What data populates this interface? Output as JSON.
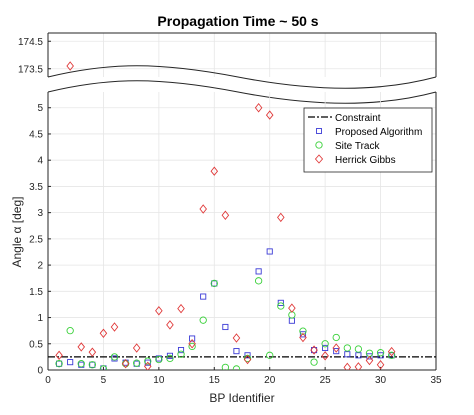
{
  "chart_data": {
    "type": "scatter",
    "title": "Propagation Time ~ 50 s",
    "xlabel": "BP Identifier",
    "ylabel": "Angle α [deg]",
    "xlim": [
      0,
      35
    ],
    "ylim_main": [
      0,
      5.3
    ],
    "ylim_top": [
      173.2,
      174.8
    ],
    "xticks": [
      "0",
      "5",
      "10",
      "15",
      "20",
      "25",
      "30",
      "35"
    ],
    "yticks_main": [
      "0",
      "0.5",
      "1",
      "1.5",
      "2",
      "2.5",
      "3",
      "3.5",
      "4",
      "4.5",
      "5"
    ],
    "yticks_top": [
      "173.5",
      "174.5"
    ],
    "grid": true,
    "legend_position": "top-right",
    "constraint": {
      "name": "Constraint",
      "value": 0.25,
      "color": "#000000"
    },
    "series": [
      {
        "name": "Proposed Algorithm",
        "marker": "square",
        "color": "#3b3bd6",
        "x": [
          1,
          2,
          3,
          4,
          5,
          6,
          7,
          8,
          9,
          10,
          11,
          12,
          13,
          14,
          15,
          16,
          17,
          18,
          19,
          20,
          21,
          22,
          23,
          24,
          25,
          26,
          27,
          28,
          29,
          30,
          31
        ],
        "y": [
          0.12,
          0.15,
          0.1,
          0.1,
          0.03,
          0.22,
          0.14,
          0.12,
          0.14,
          0.22,
          0.27,
          0.38,
          0.6,
          1.4,
          1.65,
          0.82,
          0.36,
          0.28,
          1.88,
          2.26,
          1.28,
          0.94,
          0.68,
          0.38,
          0.42,
          0.36,
          0.3,
          0.28,
          0.26,
          0.28,
          0.28
        ]
      },
      {
        "name": "Site Track",
        "marker": "circle",
        "color": "#3ad13a",
        "x": [
          1,
          2,
          3,
          4,
          5,
          6,
          7,
          8,
          9,
          10,
          11,
          12,
          13,
          14,
          15,
          16,
          17,
          18,
          19,
          20,
          21,
          22,
          23,
          24,
          25,
          26,
          27,
          28,
          29,
          30,
          31
        ],
        "y": [
          0.12,
          0.75,
          0.12,
          0.1,
          0.02,
          0.25,
          0.12,
          0.13,
          0.17,
          0.2,
          0.22,
          0.3,
          0.45,
          0.95,
          1.65,
          0.05,
          0.02,
          0.22,
          1.7,
          0.28,
          1.22,
          1.05,
          0.74,
          0.15,
          0.5,
          0.62,
          0.42,
          0.4,
          0.32,
          0.33,
          0.28
        ]
      },
      {
        "name": "Herrick Gibbs",
        "marker": "diamond",
        "color": "#e03a3a",
        "x": [
          1,
          2,
          3,
          4,
          5,
          6,
          7,
          8,
          9,
          10,
          11,
          12,
          13,
          14,
          15,
          16,
          17,
          18,
          19,
          20,
          21,
          22,
          23,
          24,
          25,
          26,
          27,
          28,
          29,
          30,
          31
        ],
        "y": [
          0.28,
          173.6,
          0.44,
          0.34,
          0.7,
          0.82,
          0.12,
          0.42,
          0.07,
          1.13,
          0.86,
          1.17,
          0.5,
          3.07,
          3.79,
          2.95,
          0.61,
          0.2,
          5.0,
          4.86,
          2.91,
          1.18,
          0.62,
          0.38,
          0.27,
          0.42,
          0.05,
          0.06,
          0.18,
          0.1,
          0.35
        ]
      }
    ]
  }
}
